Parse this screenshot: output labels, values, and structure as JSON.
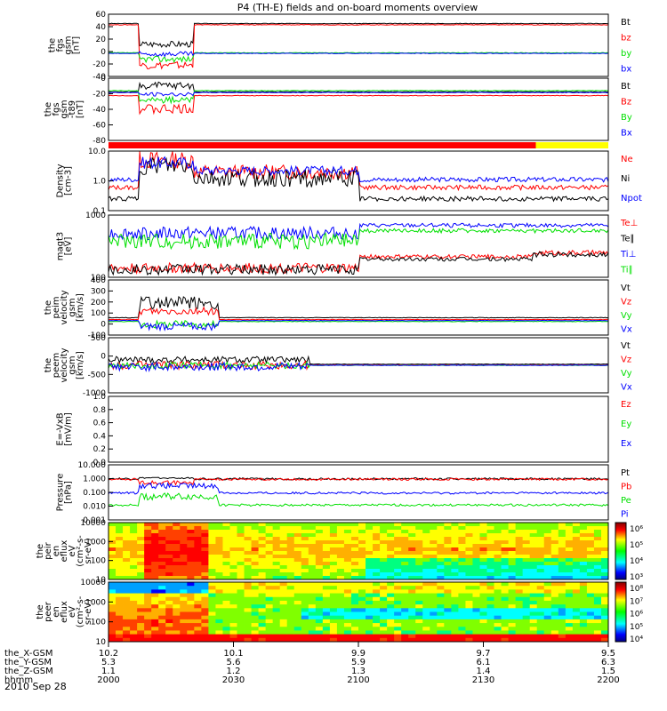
{
  "title": "P4 (TH-E) fields and on-board moments overview",
  "date": "2010 Sep 28",
  "colors": {
    "black": "#000000",
    "red": "#ff0000",
    "green": "#00e000",
    "blue": "#0000ff",
    "yellow": "#ffff00",
    "axis": "#000000"
  },
  "chart_data": [
    {
      "id": "fgs",
      "type": "line",
      "ylabel": [
        "the",
        "fgs",
        "gsm",
        "[nT]"
      ],
      "ylim": [
        -40,
        60
      ],
      "yticks": [
        "60",
        "40",
        "20",
        "0",
        "-20",
        "-40"
      ],
      "legend": [
        {
          "name": "Bt",
          "color": "black"
        },
        {
          "name": "bz",
          "color": "red"
        },
        {
          "name": "by",
          "color": "green"
        },
        {
          "name": "bx",
          "color": "blue"
        }
      ],
      "series": [
        {
          "name": "Bt",
          "color": "black",
          "base": 45,
          "seg": [
            [
              0.06,
              0.17,
              12,
              5
            ]
          ]
        },
        {
          "name": "bz",
          "color": "red",
          "base": 43,
          "seg": [
            [
              0.06,
              0.17,
              -22,
              6
            ]
          ]
        },
        {
          "name": "by",
          "color": "green",
          "base": -2,
          "seg": [
            [
              0.06,
              0.17,
              -12,
              5
            ]
          ]
        },
        {
          "name": "bx",
          "color": "blue",
          "base": -3,
          "seg": [
            [
              0.06,
              0.17,
              -4,
              4
            ]
          ]
        }
      ]
    },
    {
      "id": "fgs-t89",
      "type": "line",
      "ylabel": [
        "the",
        "fgs",
        "gsm",
        "-t89",
        "[nT]"
      ],
      "ylim": [
        -80,
        20
      ],
      "yticks": [
        "0",
        "-20",
        "-40",
        "-60",
        "-80"
      ],
      "legend": [
        {
          "name": "Bt",
          "color": "black"
        },
        {
          "name": "Bz",
          "color": "red"
        },
        {
          "name": "By",
          "color": "green"
        },
        {
          "name": "Bx",
          "color": "blue"
        }
      ],
      "series": [
        {
          "name": "Bt",
          "color": "black",
          "base": -2,
          "seg": [
            [
              0.06,
              0.17,
              8,
              6
            ]
          ]
        },
        {
          "name": "Bz",
          "color": "red",
          "base": -8,
          "seg": [
            [
              0.06,
              0.17,
              -30,
              8
            ]
          ]
        },
        {
          "name": "By",
          "color": "green",
          "base": 0,
          "seg": [
            [
              0.06,
              0.17,
              -15,
              5
            ]
          ]
        },
        {
          "name": "Bx",
          "color": "blue",
          "base": -3,
          "seg": [
            [
              0.06,
              0.17,
              -6,
              3
            ]
          ]
        }
      ]
    },
    {
      "id": "mode-bar",
      "type": "bar-strip",
      "segments": [
        {
          "from": 0.0,
          "to": 0.855,
          "color": "red"
        },
        {
          "from": 0.855,
          "to": 1.0,
          "color": "yellow"
        }
      ]
    },
    {
      "id": "density",
      "type": "line",
      "scale": "log",
      "ylabel": [
        "Density",
        "[cm-3]"
      ],
      "ylim": [
        0.1,
        10.0
      ],
      "yticks": [
        "10.0",
        "1.0",
        "0.1"
      ],
      "legend": [
        {
          "name": "Ne",
          "color": "red"
        },
        {
          "name": "Ni",
          "color": "black"
        },
        {
          "name": "Npot",
          "color": "blue"
        }
      ],
      "series": [
        {
          "name": "Ne",
          "color": "red",
          "base": 0.6,
          "seg": [
            [
              0.06,
              0.17,
              5,
              0.3
            ],
            [
              0.17,
              0.5,
              2,
              0.25
            ]
          ]
        },
        {
          "name": "Ni",
          "color": "black",
          "base": 0.25,
          "seg": [
            [
              0.06,
              0.17,
              3,
              0.3
            ],
            [
              0.17,
              0.5,
              1.2,
              0.3
            ]
          ]
        },
        {
          "name": "Npot",
          "color": "blue",
          "base": 1.1,
          "seg": [
            [
              0.06,
              0.17,
              4,
              0.2
            ],
            [
              0.17,
              0.5,
              2.2,
              0.15
            ]
          ]
        }
      ]
    },
    {
      "id": "temperature",
      "type": "line",
      "scale": "log",
      "ylabel": [
        "magt3",
        "[eV]"
      ],
      "ylim": [
        40,
        10000
      ],
      "yticks": [
        "1000",
        "100"
      ],
      "legend": [
        {
          "name": "Te⊥",
          "color": "red"
        },
        {
          "name": "Te∥",
          "color": "black"
        },
        {
          "name": "Ti⊥",
          "color": "blue"
        },
        {
          "name": "Ti∥",
          "color": "green"
        }
      ],
      "series": [
        {
          "name": "Ti⊥",
          "color": "blue",
          "base": 4000,
          "seg": [
            [
              0.0,
              0.5,
              2000,
              0.25
            ]
          ]
        },
        {
          "name": "Ti∥",
          "color": "green",
          "base": 2500,
          "seg": [
            [
              0.0,
              0.5,
              1000,
              0.3
            ]
          ]
        },
        {
          "name": "Te⊥",
          "color": "red",
          "base": 250,
          "seg": [
            [
              0.0,
              0.5,
              90,
              0.2
            ],
            [
              0.85,
              1.0,
              350,
              0.1
            ]
          ]
        },
        {
          "name": "Te∥",
          "color": "black",
          "base": 200,
          "seg": [
            [
              0.0,
              0.5,
              80,
              0.2
            ],
            [
              0.85,
              1.0,
              300,
              0.1
            ]
          ]
        }
      ]
    },
    {
      "id": "peim-velocity",
      "type": "line",
      "ylabel": [
        "the",
        "peim",
        "velocity",
        "gsm",
        "[km/s]"
      ],
      "ylim": [
        -150,
        420
      ],
      "yticks": [
        "400",
        "300",
        "200",
        "100",
        "0",
        "-100"
      ],
      "legend": [
        {
          "name": "Vt",
          "color": "black"
        },
        {
          "name": "Vz",
          "color": "red"
        },
        {
          "name": "Vy",
          "color": "green"
        },
        {
          "name": "Vx",
          "color": "blue"
        }
      ],
      "series": [
        {
          "name": "Vt",
          "color": "black",
          "base": 30,
          "seg": [
            [
              0.06,
              0.22,
              180,
              70
            ]
          ]
        },
        {
          "name": "Vz",
          "color": "red",
          "base": 10,
          "seg": [
            [
              0.06,
              0.22,
              100,
              40
            ]
          ]
        },
        {
          "name": "Vy",
          "color": "green",
          "base": -10,
          "seg": [
            [
              0.06,
              0.22,
              -40,
              40
            ]
          ]
        },
        {
          "name": "Vx",
          "color": "blue",
          "base": 0,
          "seg": [
            [
              0.06,
              0.22,
              -60,
              40
            ]
          ]
        }
      ]
    },
    {
      "id": "peem-velocity",
      "type": "line",
      "ylabel": [
        "the",
        "peem",
        "velocity",
        "gsm",
        "[km/s]"
      ],
      "ylim": [
        -1000,
        1000
      ],
      "yticks": [
        "500",
        "0",
        "-500",
        "-1000"
      ],
      "legend": [
        {
          "name": "Vt",
          "color": "black"
        },
        {
          "name": "Vz",
          "color": "red"
        },
        {
          "name": "Vy",
          "color": "green"
        },
        {
          "name": "Vx",
          "color": "blue"
        }
      ],
      "series": [
        {
          "name": "Vt",
          "color": "black",
          "base": 40,
          "seg": [
            [
              0.0,
              0.4,
              200,
              120
            ]
          ]
        },
        {
          "name": "Vz",
          "color": "red",
          "base": 10,
          "seg": [
            [
              0.0,
              0.4,
              0,
              150
            ]
          ]
        },
        {
          "name": "Vy",
          "color": "green",
          "base": 0,
          "seg": [
            [
              0.0,
              0.4,
              0,
              120
            ]
          ]
        },
        {
          "name": "Vx",
          "color": "blue",
          "base": 0,
          "seg": [
            [
              0.0,
              0.4,
              -50,
              150
            ]
          ]
        }
      ]
    },
    {
      "id": "e-vxb",
      "type": "line",
      "ylabel": [
        "E=-VxB",
        "[mV/m]"
      ],
      "ylim": [
        -1.0,
        1.0
      ],
      "yticks": [
        "1.0",
        "0.8",
        "0.6",
        "0.4",
        "0.2",
        "0.0"
      ],
      "legend": [
        {
          "name": "Ez",
          "color": "red"
        },
        {
          "name": "Ey",
          "color": "green"
        },
        {
          "name": "Ex",
          "color": "blue"
        }
      ],
      "series": []
    },
    {
      "id": "pressure",
      "type": "line",
      "scale": "log",
      "ylabel": [
        "Pressure",
        "[nPa]"
      ],
      "ylim": [
        0.001,
        10
      ],
      "yticks": [
        "10.000",
        "1.000",
        "0.100",
        "0.010",
        "0.001"
      ],
      "legend": [
        {
          "name": "Pt",
          "color": "black"
        },
        {
          "name": "Pb",
          "color": "red"
        },
        {
          "name": "Pe",
          "color": "green"
        },
        {
          "name": "Pi",
          "color": "blue"
        }
      ],
      "series": [
        {
          "name": "Pt",
          "color": "black",
          "base": 0.95,
          "seg": [
            [
              0.06,
              0.17,
              1.1,
              0.05
            ]
          ]
        },
        {
          "name": "Pb",
          "color": "red",
          "base": 0.9,
          "seg": [
            [
              0.06,
              0.17,
              0.5,
              0.15
            ]
          ]
        },
        {
          "name": "Pe",
          "color": "green",
          "base": 0.012,
          "seg": [
            [
              0.06,
              0.22,
              0.05,
              0.25
            ]
          ]
        },
        {
          "name": "Pi",
          "color": "blue",
          "base": 0.09,
          "seg": [
            [
              0.06,
              0.22,
              0.3,
              0.2
            ]
          ]
        }
      ]
    },
    {
      "id": "peir-en-eflux",
      "type": "heatmap",
      "ylabel": [
        "the",
        "peir",
        "en",
        "eflux",
        "eV",
        "(cm²-s-",
        "sr-eV)"
      ],
      "ylim": [
        10,
        10000
      ],
      "yticks": [
        "10000",
        "1000",
        "100",
        "10"
      ],
      "colorbar": {
        "ticks": [
          "10⁶",
          "10⁵",
          "10⁴",
          "10³"
        ]
      }
    },
    {
      "id": "peer-en-eflux",
      "type": "heatmap",
      "ylabel": [
        "the",
        "peer",
        "en",
        "eflux",
        "eV",
        "(cm²-s-",
        "sr-eV)"
      ],
      "ylim": [
        10,
        10000
      ],
      "yticks": [
        "10000",
        "1000",
        "100",
        "10"
      ],
      "colorbar": {
        "ticks": [
          "10⁸",
          "10⁷",
          "10⁶",
          "10⁵",
          "10⁴"
        ]
      }
    }
  ],
  "x_axis": {
    "rows": [
      {
        "label": "the_X-GSM",
        "values": [
          "10.2",
          "10.1",
          "9.9",
          "9.7",
          "9.5"
        ]
      },
      {
        "label": "the_Y-GSM",
        "values": [
          "5.3",
          "5.6",
          "5.9",
          "6.1",
          "6.3"
        ]
      },
      {
        "label": "the_Z-GSM",
        "values": [
          "1.1",
          "1.2",
          "1.3",
          "1.4",
          "1.5"
        ]
      },
      {
        "label": "hhmm",
        "values": [
          "2000",
          "2030",
          "2100",
          "2130",
          "2200"
        ]
      }
    ]
  }
}
